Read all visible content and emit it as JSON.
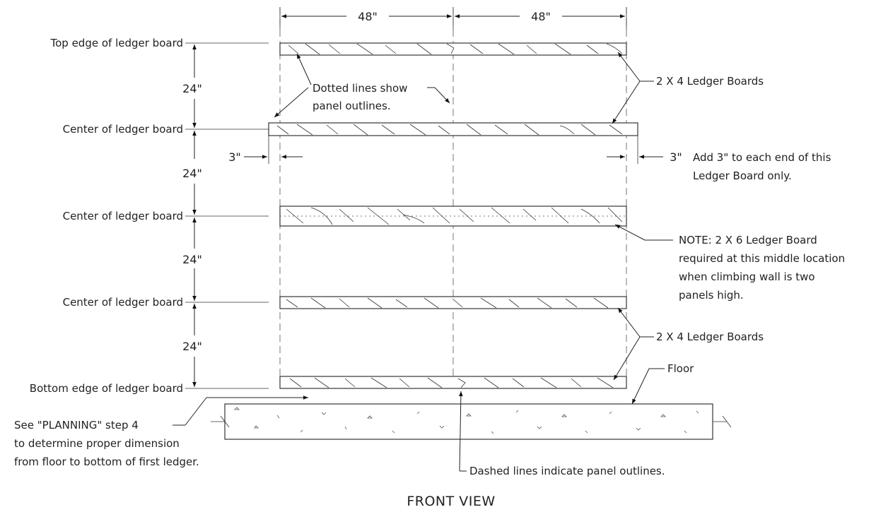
{
  "labels": {
    "top_edge": "Top edge of ledger board",
    "center_1": "Center of ledger board",
    "center_2": "Center of ledger board",
    "center_3": "Center of ledger board",
    "bottom_edge": "Bottom edge of ledger board",
    "planning_line1": "See \"PLANNING\" step 4",
    "planning_line2": "to determine proper dimension",
    "planning_line3": "from floor to bottom of first ledger."
  },
  "dimensions": {
    "width_left": "48\"",
    "width_right": "48\"",
    "spacing_1": "24\"",
    "spacing_2": "24\"",
    "spacing_3": "24\"",
    "spacing_4": "24\"",
    "ext_left": "3\"",
    "ext_right": "3\""
  },
  "callouts": {
    "dotted_line1": "Dotted lines show",
    "dotted_line2": "panel outlines.",
    "ledger_top": "2 X 4 Ledger Boards",
    "add_line1": "Add 3\" to each end of this",
    "add_line2": "Ledger Board only.",
    "note_line1": "NOTE: 2 X 6 Ledger Board",
    "note_line2": "required at this middle location",
    "note_line3": "when climbing wall is two",
    "note_line4": "panels high.",
    "ledger_bottom": "2 X 4 Ledger Boards",
    "floor": "Floor",
    "dashed": "Dashed lines indicate panel outlines."
  },
  "view_title": "FRONT VIEW"
}
